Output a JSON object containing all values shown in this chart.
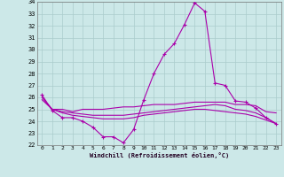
{
  "xlabel": "Windchill (Refroidissement éolien,°C)",
  "xlim": [
    -0.5,
    23.5
  ],
  "ylim": [
    22,
    34
  ],
  "yticks": [
    22,
    23,
    24,
    25,
    26,
    27,
    28,
    29,
    30,
    31,
    32,
    33,
    34
  ],
  "xticks": [
    0,
    1,
    2,
    3,
    4,
    5,
    6,
    7,
    8,
    9,
    10,
    11,
    12,
    13,
    14,
    15,
    16,
    17,
    18,
    19,
    20,
    21,
    22,
    23
  ],
  "bg_color": "#cce8e8",
  "line_color": "#aa00aa",
  "grid_color": "#aacccc",
  "series1_x": [
    0,
    1,
    2,
    3,
    4,
    5,
    6,
    7,
    8,
    9,
    10,
    11,
    12,
    13,
    14,
    15,
    16,
    17,
    18,
    19,
    20,
    21,
    22,
    23
  ],
  "series1_y": [
    26.2,
    24.9,
    24.3,
    24.3,
    24.0,
    23.5,
    22.7,
    22.7,
    22.2,
    23.3,
    25.8,
    28.0,
    29.6,
    30.5,
    32.1,
    33.9,
    33.2,
    27.2,
    27.0,
    25.7,
    25.6,
    25.1,
    24.3,
    23.8
  ],
  "series2_x": [
    0,
    1,
    2,
    3,
    4,
    5,
    6,
    7,
    8,
    9,
    10,
    11,
    12,
    13,
    14,
    15,
    16,
    17,
    18,
    19,
    20,
    21,
    22,
    23
  ],
  "series2_y": [
    26.0,
    25.0,
    25.0,
    24.8,
    25.0,
    25.0,
    25.0,
    25.1,
    25.2,
    25.2,
    25.3,
    25.4,
    25.4,
    25.4,
    25.5,
    25.6,
    25.6,
    25.6,
    25.6,
    25.4,
    25.4,
    25.3,
    24.8,
    24.7
  ],
  "series3_x": [
    0,
    1,
    2,
    3,
    4,
    5,
    6,
    7,
    8,
    9,
    10,
    11,
    12,
    13,
    14,
    15,
    16,
    17,
    18,
    19,
    20,
    21,
    22,
    23
  ],
  "series3_y": [
    25.8,
    25.0,
    24.8,
    24.7,
    24.6,
    24.5,
    24.5,
    24.5,
    24.5,
    24.6,
    24.7,
    24.8,
    24.9,
    25.0,
    25.1,
    25.2,
    25.3,
    25.4,
    25.3,
    25.0,
    24.9,
    24.7,
    24.3,
    23.8
  ],
  "series4_x": [
    0,
    1,
    2,
    3,
    4,
    5,
    6,
    7,
    8,
    9,
    10,
    11,
    12,
    13,
    14,
    15,
    16,
    17,
    18,
    19,
    20,
    21,
    22,
    23
  ],
  "series4_y": [
    26.0,
    25.0,
    24.7,
    24.5,
    24.4,
    24.3,
    24.2,
    24.2,
    24.2,
    24.3,
    24.5,
    24.6,
    24.7,
    24.8,
    24.9,
    25.0,
    25.0,
    24.9,
    24.8,
    24.7,
    24.6,
    24.4,
    24.1,
    23.8
  ]
}
